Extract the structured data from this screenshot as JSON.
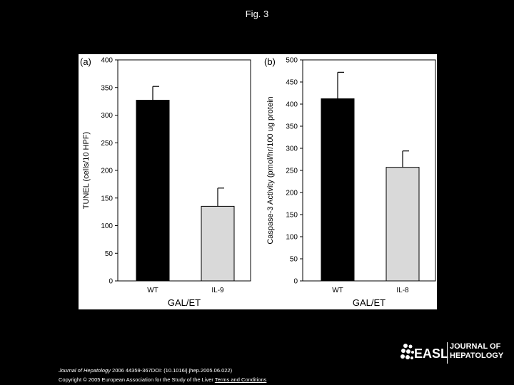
{
  "header": {
    "title": "Fig. 3"
  },
  "chart_data": [
    {
      "type": "bar",
      "panel_label": "(a)",
      "categories": [
        "WT",
        "IL-9"
      ],
      "values": [
        327,
        135
      ],
      "errors": [
        25,
        33
      ],
      "colors": [
        "#000000",
        "#d9d9d9"
      ],
      "ylabel": "TUNEL (cells/10 HPF)",
      "xlabel": "GAL/ET",
      "ylim": [
        0,
        400
      ],
      "yticks": [
        "0",
        "50",
        "100",
        "150",
        "200",
        "250",
        "300",
        "350",
        "400"
      ],
      "grid": false
    },
    {
      "type": "bar",
      "panel_label": "(b)",
      "categories": [
        "WT",
        "IL-8"
      ],
      "values": [
        412,
        257
      ],
      "errors": [
        60,
        37
      ],
      "colors": [
        "#000000",
        "#d9d9d9"
      ],
      "ylabel": "Caspase-3 Activity (pmol/hr/100 ug protein",
      "xlabel": "GAL/ET",
      "ylim": [
        0,
        500
      ],
      "yticks": [
        "0",
        "50",
        "100",
        "150",
        "200",
        "250",
        "300",
        "350",
        "400",
        "450",
        "500"
      ],
      "grid": false
    }
  ],
  "footer": {
    "journal": "Journal of Hepatology",
    "citation_rest": " 2006 44359-367DOI: (10.1016/j.jhep.2005.06.022)",
    "copyright": "Copyright © 2005 European Association for the Study of the Liver ",
    "terms_link": "Terms and Conditions"
  },
  "logo": {
    "easl": "EASL",
    "line1": "JOURNAL OF",
    "line2": "HEPATOLOGY"
  }
}
